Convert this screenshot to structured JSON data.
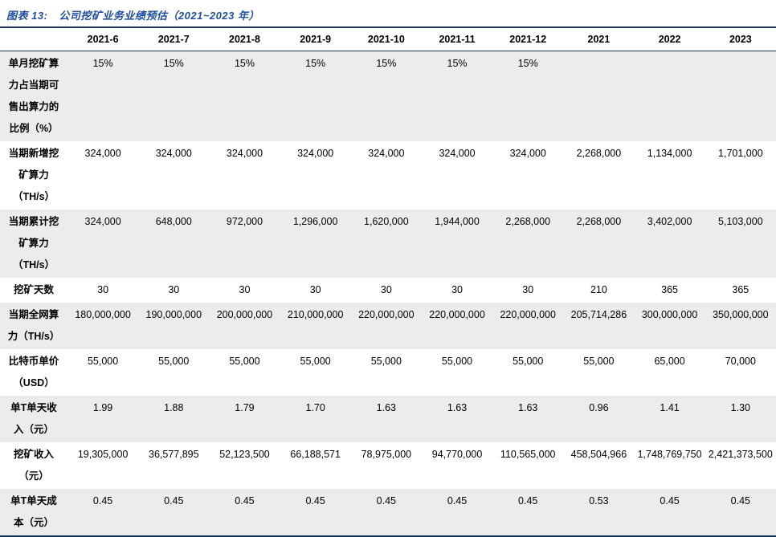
{
  "title": {
    "prefix": "图表 13:",
    "text": "公司挖矿业务业绩预估（2021~2023 年）"
  },
  "colors": {
    "title_blue": "#1f4e9f",
    "rule_navy": "#17375d",
    "stripe_gray": "#ececec"
  },
  "table": {
    "columns": [
      "2021-6",
      "2021-7",
      "2021-8",
      "2021-9",
      "2021-10",
      "2021-11",
      "2021-12",
      "2021",
      "2022",
      "2023"
    ],
    "rows": [
      {
        "label": "单月挖矿算力占当期可售出算力的比例（%）",
        "label_lines": [
          "单月挖矿算",
          "力占当期可",
          "售出算力的",
          "比例（%）"
        ],
        "values": [
          "15%",
          "15%",
          "15%",
          "15%",
          "15%",
          "15%",
          "15%",
          "",
          "",
          ""
        ]
      },
      {
        "label": "当期新增挖矿算力（TH/s）",
        "label_lines": [
          "当期新增挖",
          "矿算力",
          "（TH/s）"
        ],
        "values": [
          "324,000",
          "324,000",
          "324,000",
          "324,000",
          "324,000",
          "324,000",
          "324,000",
          "2,268,000",
          "1,134,000",
          "1,701,000"
        ]
      },
      {
        "label": "当期累计挖矿算力（TH/s）",
        "label_lines": [
          "当期累计挖",
          "矿算力",
          "（TH/s）"
        ],
        "values": [
          "324,000",
          "648,000",
          "972,000",
          "1,296,000",
          "1,620,000",
          "1,944,000",
          "2,268,000",
          "2,268,000",
          "3,402,000",
          "5,103,000"
        ]
      },
      {
        "label": "挖矿天数",
        "label_lines": [
          "挖矿天数"
        ],
        "values": [
          "30",
          "30",
          "30",
          "30",
          "30",
          "30",
          "30",
          "210",
          "365",
          "365"
        ]
      },
      {
        "label": "当期全网算力（TH/s）",
        "label_lines": [
          "当期全网算",
          "力（TH/s）"
        ],
        "values": [
          "180,000,000",
          "190,000,000",
          "200,000,000",
          "210,000,000",
          "220,000,000",
          "220,000,000",
          "220,000,000",
          "205,714,286",
          "300,000,000",
          "350,000,000"
        ]
      },
      {
        "label": "比特币单价（USD）",
        "label_lines": [
          "比特币单价",
          "（USD）"
        ],
        "values": [
          "55,000",
          "55,000",
          "55,000",
          "55,000",
          "55,000",
          "55,000",
          "55,000",
          "55,000",
          "65,000",
          "70,000"
        ]
      },
      {
        "label": "单T单天收入（元）",
        "label_lines": [
          "单T单天收",
          "入（元）"
        ],
        "values": [
          "1.99",
          "1.88",
          "1.79",
          "1.70",
          "1.63",
          "1.63",
          "1.63",
          "0.96",
          "1.41",
          "1.30"
        ]
      },
      {
        "label": "挖矿收入（元）",
        "label_lines": [
          "挖矿收入",
          "（元）"
        ],
        "values": [
          "19,305,000",
          "36,577,895",
          "52,123,500",
          "66,188,571",
          "78,975,000",
          "94,770,000",
          "110,565,000",
          "458,504,966",
          "1,748,769,750",
          "2,421,373,500"
        ]
      },
      {
        "label": "单T单天成本（元）",
        "label_lines": [
          "单T单天成",
          "本（元）"
        ],
        "values": [
          "0.45",
          "0.45",
          "0.45",
          "0.45",
          "0.45",
          "0.45",
          "0.45",
          "0.53",
          "0.45",
          "0.45"
        ]
      }
    ]
  }
}
